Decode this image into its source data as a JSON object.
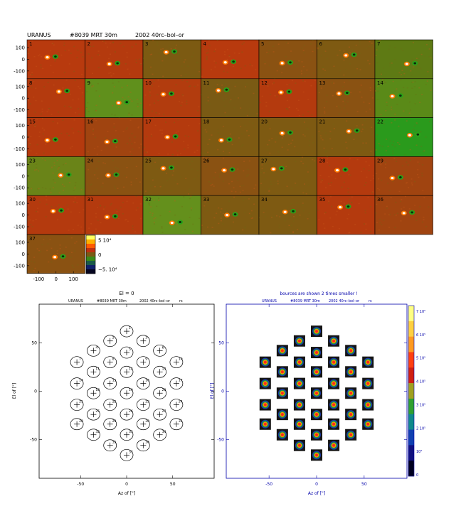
{
  "header": {
    "object": "URANUS",
    "scan": "#8039  MRT  30m",
    "setup": "2002  40rc–bol–or"
  },
  "grid": {
    "ytick_labels": [
      "100",
      "0",
      "-100"
    ],
    "xtick_labels": [
      "-100",
      "0",
      "100"
    ],
    "panels": [
      {
        "n": "1",
        "bg": "#b83a0e",
        "src": [
          0.35,
          0.45
        ],
        "sep": 0.14
      },
      {
        "n": "2",
        "bg": "#b43a0e",
        "src": [
          0.42,
          0.62
        ],
        "sep": 0.14
      },
      {
        "n": "3",
        "bg": "#7c5a12",
        "src": [
          0.4,
          0.32
        ],
        "sep": 0.14
      },
      {
        "n": "4",
        "bg": "#b83a0e",
        "src": [
          0.42,
          0.58
        ],
        "sep": 0.14
      },
      {
        "n": "5",
        "bg": "#8a5212",
        "src": [
          0.4,
          0.6
        ],
        "sep": 0.14
      },
      {
        "n": "6",
        "bg": "#7e5a12",
        "src": [
          0.5,
          0.4
        ],
        "sep": 0.14
      },
      {
        "n": "7",
        "bg": "#5e7a14",
        "src": [
          0.55,
          0.62
        ],
        "sep": 0.14
      },
      {
        "n": "8",
        "bg": "#b43a0e",
        "src": [
          0.55,
          0.33
        ],
        "sep": 0.14
      },
      {
        "n": "9",
        "bg": "#60901c",
        "src": [
          0.58,
          0.62
        ],
        "sep": 0.14
      },
      {
        "n": "10",
        "bg": "#b23c0e",
        "src": [
          0.35,
          0.4
        ],
        "sep": 0.14
      },
      {
        "n": "11",
        "bg": "#7a5a14",
        "src": [
          0.3,
          0.3
        ],
        "sep": 0.14
      },
      {
        "n": "12",
        "bg": "#b43a0e",
        "src": [
          0.38,
          0.35
        ],
        "sep": 0.14
      },
      {
        "n": "13",
        "bg": "#8a5212",
        "src": [
          0.38,
          0.38
        ],
        "sep": 0.14
      },
      {
        "n": "14",
        "bg": "#5a8a18",
        "src": [
          0.3,
          0.45
        ],
        "sep": 0.14
      },
      {
        "n": "15",
        "bg": "#b43a0e",
        "src": [
          0.35,
          0.58
        ],
        "sep": 0.14
      },
      {
        "n": "16",
        "bg": "#a04410",
        "src": [
          0.38,
          0.62
        ],
        "sep": 0.14
      },
      {
        "n": "17",
        "bg": "#b43a0e",
        "src": [
          0.42,
          0.5
        ],
        "sep": 0.14
      },
      {
        "n": "18",
        "bg": "#7e5a12",
        "src": [
          0.35,
          0.58
        ],
        "sep": 0.14
      },
      {
        "n": "20",
        "bg": "#7e5a12",
        "src": [
          0.4,
          0.4
        ],
        "sep": 0.14
      },
      {
        "n": "21",
        "bg": "#7e5a12",
        "src": [
          0.55,
          0.35
        ],
        "sep": 0.14
      },
      {
        "n": "22",
        "bg": "#2a9a1c",
        "src": [
          0.6,
          0.45
        ],
        "sep": 0.14
      },
      {
        "n": "23",
        "bg": "#6a8418",
        "src": [
          0.58,
          0.48
        ],
        "sep": 0.14
      },
      {
        "n": "24",
        "bg": "#8a5212",
        "src": [
          0.4,
          0.48
        ],
        "sep": 0.14
      },
      {
        "n": "25",
        "bg": "#7e5a12",
        "src": [
          0.35,
          0.3
        ],
        "sep": 0.14
      },
      {
        "n": "26",
        "bg": "#8a5212",
        "src": [
          0.4,
          0.35
        ],
        "sep": 0.14
      },
      {
        "n": "27",
        "bg": "#7e5a12",
        "src": [
          0.25,
          0.32
        ],
        "sep": 0.14
      },
      {
        "n": "28",
        "bg": "#b43a0e",
        "src": [
          0.35,
          0.35
        ],
        "sep": 0.14
      },
      {
        "n": "29",
        "bg": "#a04410",
        "src": [
          0.3,
          0.55
        ],
        "sep": 0.14
      },
      {
        "n": "30",
        "bg": "#b43a0e",
        "src": [
          0.45,
          0.4
        ],
        "sep": 0.14
      },
      {
        "n": "31",
        "bg": "#b43a0e",
        "src": [
          0.38,
          0.55
        ],
        "sep": 0.14
      },
      {
        "n": "32",
        "bg": "#64901c",
        "src": [
          0.5,
          0.7
        ],
        "sep": 0.14
      },
      {
        "n": "33",
        "bg": "#7e5a12",
        "src": [
          0.45,
          0.5
        ],
        "sep": 0.14
      },
      {
        "n": "34",
        "bg": "#7e5a12",
        "src": [
          0.45,
          0.42
        ],
        "sep": 0.14
      },
      {
        "n": "35",
        "bg": "#b43a0e",
        "src": [
          0.4,
          0.3
        ],
        "sep": 0.14
      },
      {
        "n": "36",
        "bg": "#a04410",
        "src": [
          0.5,
          0.45
        ],
        "sep": 0.14
      },
      {
        "n": "37",
        "bg": "#8a5212",
        "src": [
          0.48,
          0.58
        ],
        "sep": 0.14
      }
    ]
  },
  "colorbar": {
    "labels": [
      "5 10⁴",
      "0",
      "−5. 10⁴"
    ]
  },
  "left_plot": {
    "top_label": "El = 0",
    "title_object": "URANUS",
    "title_scan": "#8039 MRT 30m",
    "title_setup": "2002 40rc–bol–or",
    "title_extra": "rs",
    "xlabel": "Az of [\"]",
    "ylabel": "El of [\"]",
    "xticks": [
      "-50",
      "0",
      "50"
    ],
    "yticks": [
      "50",
      "0",
      "-50"
    ]
  },
  "right_plot": {
    "top_label": "bources are shown 2 times smaller !",
    "title_object": "URANUS",
    "title_scan": "#8039 MRT 30m",
    "title_setup": "2002 40rc–bol–or",
    "title_extra": "rs",
    "xlabel": "Az of [\"]",
    "ylabel": "El of [\"]",
    "xticks": [
      "-50",
      "0",
      "50"
    ],
    "yticks": [
      "50",
      "0",
      "-50"
    ],
    "colorbar_labels": [
      "7 10⁵",
      "6 10⁵",
      "5 10⁵",
      "4 10⁵",
      "3 10⁵",
      "2 10⁵",
      "10⁵",
      "0"
    ]
  },
  "chart_data": {
    "type": "scatter",
    "xlabel": "Az of [\"]",
    "ylabel": "El of [\"]",
    "xlim": [
      -95,
      95
    ],
    "ylim": [
      -90,
      90
    ],
    "bolometers": [
      {
        "id": "1",
        "x": 0,
        "y": 62
      },
      {
        "id": "2",
        "x": -18,
        "y": 52
      },
      {
        "id": "3",
        "x": 18,
        "y": 52
      },
      {
        "id": "4",
        "x": -36,
        "y": 42
      },
      {
        "id": "5",
        "x": 0,
        "y": 40
      },
      {
        "id": "6",
        "x": 36,
        "y": 42
      },
      {
        "id": "7",
        "x": -54,
        "y": 30
      },
      {
        "id": "8",
        "x": -18,
        "y": 30
      },
      {
        "id": "9",
        "x": 18,
        "y": 30
      },
      {
        "id": "10",
        "x": 54,
        "y": 30
      },
      {
        "id": "11",
        "x": -36,
        "y": 20
      },
      {
        "id": "12",
        "x": 0,
        "y": 20
      },
      {
        "id": "13",
        "x": 36,
        "y": 20
      },
      {
        "id": "14",
        "x": -54,
        "y": 8
      },
      {
        "id": "15",
        "x": -18,
        "y": 8
      },
      {
        "id": "16",
        "x": 18,
        "y": 8
      },
      {
        "id": "17",
        "x": 54,
        "y": 8
      },
      {
        "id": "18",
        "x": -36,
        "y": -2
      },
      {
        "id": "19",
        "x": 0,
        "y": -2
      },
      {
        "id": "20",
        "x": 36,
        "y": -2
      },
      {
        "id": "21",
        "x": -54,
        "y": -14
      },
      {
        "id": "22",
        "x": -18,
        "y": -14
      },
      {
        "id": "23",
        "x": 18,
        "y": -14
      },
      {
        "id": "24",
        "x": 54,
        "y": -14
      },
      {
        "id": "25",
        "x": -36,
        "y": -24
      },
      {
        "id": "26",
        "x": 0,
        "y": -24
      },
      {
        "id": "27",
        "x": 36,
        "y": -24
      },
      {
        "id": "28",
        "x": -54,
        "y": -34
      },
      {
        "id": "29",
        "x": -18,
        "y": -34
      },
      {
        "id": "30",
        "x": 18,
        "y": -34
      },
      {
        "id": "31",
        "x": 54,
        "y": -34
      },
      {
        "id": "32",
        "x": -36,
        "y": -45
      },
      {
        "id": "33",
        "x": 0,
        "y": -45
      },
      {
        "id": "34",
        "x": 36,
        "y": -45
      },
      {
        "id": "35",
        "x": -18,
        "y": -56
      },
      {
        "id": "36",
        "x": 18,
        "y": -56
      },
      {
        "id": "37",
        "x": 0,
        "y": -66
      }
    ]
  }
}
